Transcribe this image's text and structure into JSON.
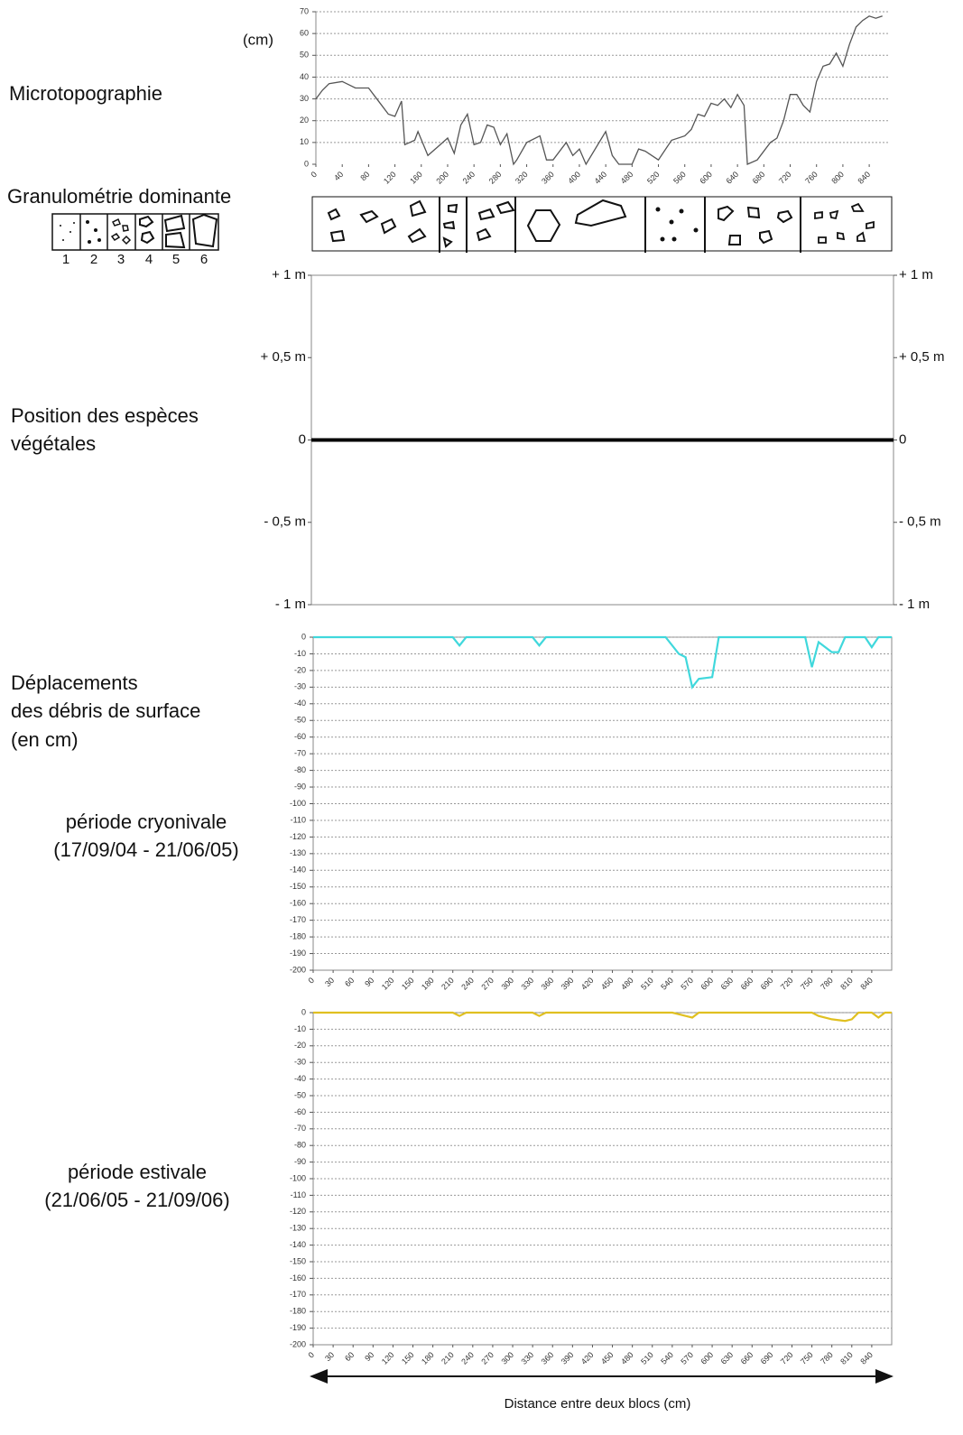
{
  "labels": {
    "microtopo": "Microtopographie",
    "granulo": "Granulométrie dominante",
    "vegetation": [
      "Position des espèces",
      "végétales"
    ],
    "deplacements": [
      "Déplacements",
      "des débris de surface",
      "(en cm)"
    ],
    "cryo": [
      "période cryonivale",
      "(17/09/04 - 21/06/05)"
    ],
    "estival": [
      "période estivale",
      "(21/06/05 - 21/09/06)"
    ],
    "x_axis": "Distance entre deux blocs (cm)"
  },
  "granulo_legend": [
    "1",
    "2",
    "3",
    "4",
    "5",
    "6"
  ],
  "chart_data": [
    {
      "type": "line",
      "ylabel": "(cm)",
      "color": "#555555",
      "grid": true,
      "x": [
        0,
        10,
        20,
        40,
        60,
        80,
        90,
        100,
        110,
        120,
        130,
        135,
        150,
        155,
        170,
        185,
        200,
        210,
        220,
        230,
        240,
        250,
        260,
        270,
        280,
        290,
        300,
        305,
        320,
        340,
        350,
        360,
        380,
        390,
        400,
        410,
        440,
        450,
        460,
        480,
        490,
        500,
        520,
        540,
        560,
        570,
        580,
        590,
        600,
        610,
        620,
        630,
        640,
        650,
        655,
        670,
        690,
        700,
        710,
        720,
        730,
        740,
        750,
        760,
        770,
        780,
        790,
        800,
        810,
        820,
        830,
        840,
        850,
        860
      ],
      "values": [
        30,
        34,
        37,
        38,
        35,
        35,
        31,
        27,
        23,
        22,
        29,
        9,
        11,
        15,
        4,
        8,
        12,
        5,
        18,
        23,
        9,
        10,
        18,
        17,
        9,
        14,
        0,
        2,
        10,
        13,
        2,
        2,
        10,
        4,
        7,
        0,
        15,
        4,
        0,
        0,
        7,
        6,
        2,
        11,
        13,
        16,
        23,
        22,
        28,
        27,
        30,
        26,
        32,
        27,
        0,
        2,
        10,
        12,
        20,
        32,
        32,
        27,
        24,
        38,
        45,
        46,
        51,
        45,
        55,
        63,
        66,
        68,
        67,
        68
      ],
      "xlim": [
        0,
        870
      ],
      "xticks": [
        0,
        40,
        80,
        120,
        160,
        200,
        240,
        280,
        320,
        360,
        400,
        440,
        480,
        520,
        560,
        600,
        640,
        680,
        720,
        760,
        800,
        840
      ],
      "ylim": [
        0,
        70
      ],
      "yticks": [
        0,
        10,
        20,
        30,
        40,
        50,
        60,
        70
      ]
    },
    {
      "type": "scatter",
      "grid": false,
      "baseline": 0,
      "ylim": [
        -1,
        1
      ],
      "yticks": [
        {
          "value": 1,
          "label": "+ 1 m"
        },
        {
          "value": 0.5,
          "label": "+ 0,5 m"
        },
        0,
        {
          "value": -0.5,
          "label": "- 0,5 m"
        },
        {
          "value": -1,
          "label": "- 1 m"
        }
      ],
      "y2lim": [
        -1,
        1
      ],
      "y2ticks": [
        {
          "value": 1,
          "label": "+ 1 m"
        },
        {
          "value": 0.5,
          "label": "+ 0,5 m"
        },
        0,
        {
          "value": -0.5,
          "label": "- 0,5 m"
        },
        {
          "value": -1,
          "label": "- 1 m"
        }
      ]
    },
    {
      "type": "line",
      "color": "#40d8dc",
      "grid": true,
      "x": [
        0,
        210,
        220,
        230,
        330,
        340,
        350,
        530,
        550,
        560,
        570,
        580,
        600,
        610,
        740,
        750,
        760,
        780,
        790,
        800,
        830,
        840,
        850,
        870
      ],
      "values": [
        0,
        0,
        -5,
        0,
        0,
        -5,
        0,
        0,
        -10,
        -12,
        -30,
        -25,
        -24,
        0,
        0,
        -18,
        -3,
        -9,
        -9,
        0,
        0,
        -6,
        0,
        0
      ],
      "xlim": [
        0,
        870
      ],
      "xticks": [
        0,
        30,
        60,
        90,
        120,
        150,
        180,
        210,
        240,
        270,
        300,
        330,
        360,
        390,
        420,
        450,
        480,
        510,
        540,
        570,
        600,
        630,
        660,
        690,
        720,
        750,
        780,
        810,
        840
      ],
      "ylim": [
        -200,
        0
      ],
      "yticks": [
        0,
        -10,
        -20,
        -30,
        -40,
        -50,
        -60,
        -70,
        -80,
        -90,
        -100,
        -110,
        -120,
        -130,
        -140,
        -150,
        -160,
        -170,
        -180,
        -190,
        -200
      ]
    },
    {
      "type": "line",
      "color": "#e0c020",
      "grid": true,
      "x": [
        0,
        210,
        220,
        230,
        330,
        340,
        350,
        540,
        550,
        570,
        580,
        750,
        760,
        780,
        800,
        810,
        820,
        840,
        850,
        860,
        870
      ],
      "values": [
        0,
        0,
        -2,
        0,
        0,
        -2,
        0,
        0,
        -1,
        -3,
        0,
        0,
        -2,
        -4,
        -5,
        -4,
        0,
        0,
        -3,
        0,
        0
      ],
      "xlim": [
        0,
        870
      ],
      "xticks": [
        0,
        30,
        60,
        90,
        120,
        150,
        180,
        210,
        240,
        270,
        300,
        330,
        360,
        390,
        420,
        450,
        480,
        510,
        540,
        570,
        600,
        630,
        660,
        690,
        720,
        750,
        780,
        810,
        840
      ],
      "ylim": [
        -200,
        0
      ],
      "yticks": [
        0,
        -10,
        -20,
        -30,
        -40,
        -50,
        -60,
        -70,
        -80,
        -90,
        -100,
        -110,
        -120,
        -130,
        -140,
        -150,
        -160,
        -170,
        -180,
        -190,
        -200
      ]
    }
  ]
}
